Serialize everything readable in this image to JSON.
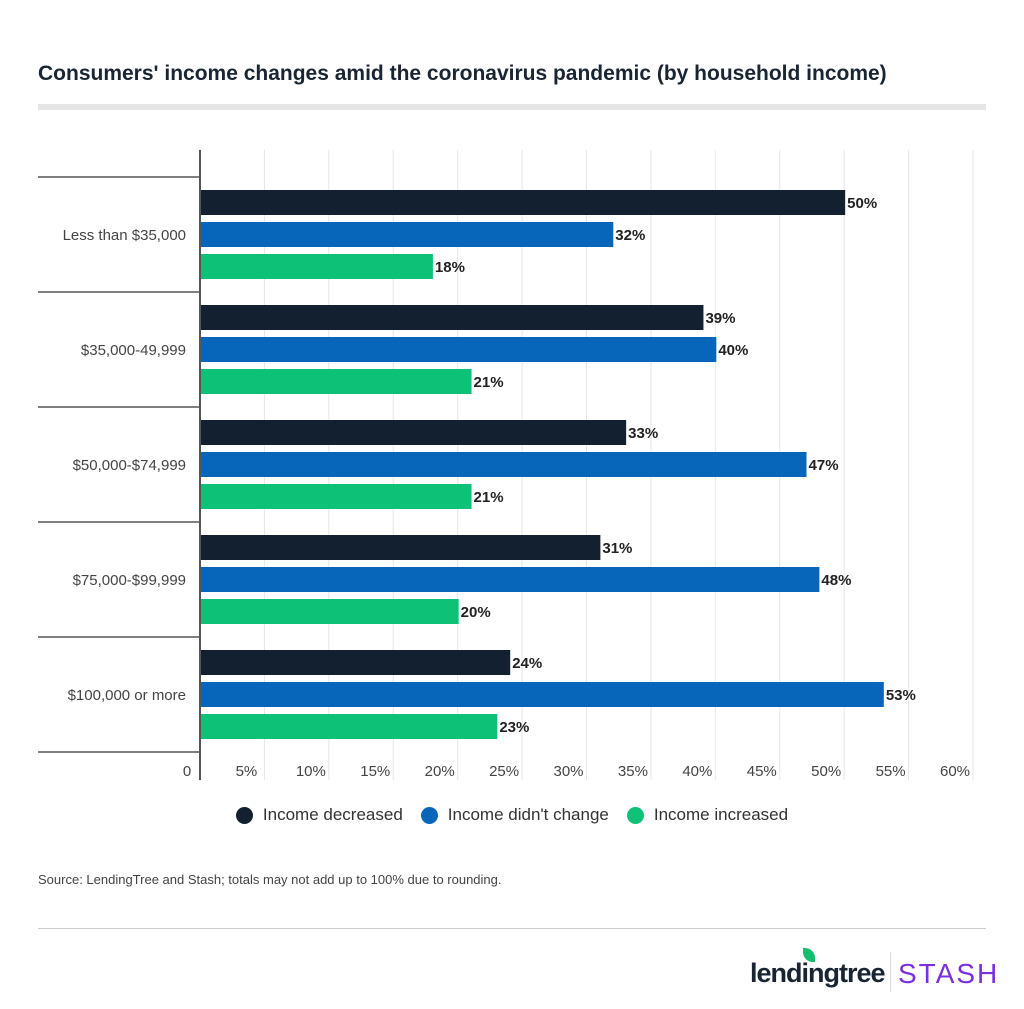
{
  "chart_data": {
    "type": "bar",
    "orientation": "horizontal",
    "title": "Consumers' income changes amid the coronavirus pandemic (by household income)",
    "categories": [
      "Less than $35,000",
      "$35,000-49,999",
      "$50,000-$74,999",
      "$75,000-$99,999",
      "$100,000 or more"
    ],
    "series": [
      {
        "name": "Income decreased",
        "color": "#12202f",
        "values": [
          50,
          39,
          33,
          31,
          24
        ]
      },
      {
        "name": "Income didn't change",
        "color": "#0866ba",
        "values": [
          32,
          40,
          47,
          48,
          53
        ]
      },
      {
        "name": "Income increased",
        "color": "#0dc177",
        "values": [
          18,
          21,
          21,
          20,
          23
        ]
      }
    ],
    "xlim": [
      0,
      60
    ],
    "xticks": [
      "0",
      "5%",
      "10%",
      "15%",
      "20%",
      "25%",
      "30%",
      "35%",
      "40%",
      "45%",
      "50%",
      "55%",
      "60%"
    ],
    "grid": true,
    "legend": "bottom"
  },
  "source": "Source: LendingTree and Stash; totals may not add up to 100% due to rounding.",
  "logos": {
    "lendingtree": "lendingtree",
    "stash": "STASH"
  }
}
